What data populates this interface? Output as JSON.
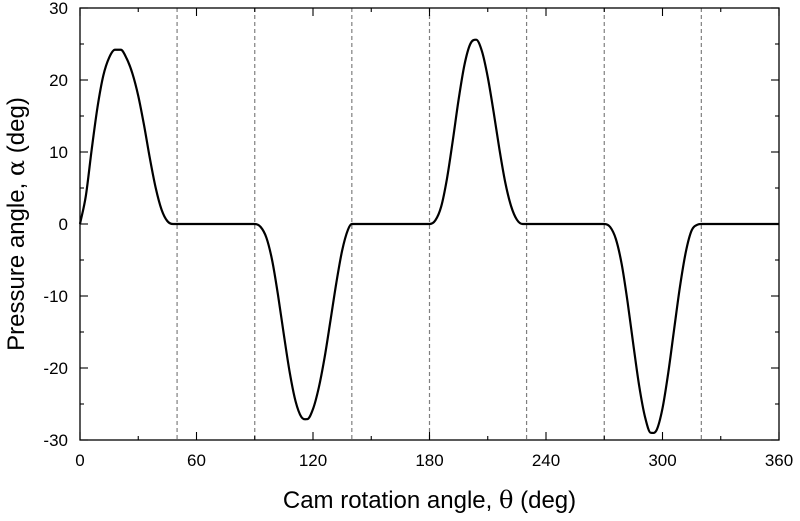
{
  "chart_data": {
    "type": "line",
    "title": "",
    "xlabel": {
      "prefix": "Cam rotation angle, ",
      "symbol": "θ",
      "suffix": " (deg)"
    },
    "ylabel": {
      "prefix": "Pressure angle, ",
      "symbol": "α",
      "suffix": " (deg)"
    },
    "xlim": [
      0,
      360
    ],
    "ylim": [
      -30,
      30
    ],
    "xticks": [
      0,
      60,
      120,
      180,
      240,
      300,
      360
    ],
    "yticks": [
      -30,
      -20,
      -10,
      0,
      10,
      20,
      30
    ],
    "grid": false,
    "line_color": "#000000",
    "divider_color": "#7f7f7f",
    "dividers": [
      50,
      90,
      140,
      180,
      230,
      270,
      320
    ],
    "series": [
      {
        "x": [
          0,
          3,
          6,
          9,
          12,
          15,
          18,
          21,
          24,
          27,
          30,
          33,
          36,
          39,
          42,
          45,
          48,
          50,
          90,
          93,
          96,
          99,
          102,
          105,
          108,
          111,
          114,
          117,
          120,
          123,
          126,
          129,
          132,
          135,
          138,
          140,
          180,
          183,
          186,
          189,
          192,
          195,
          198,
          201,
          204,
          207,
          210,
          213,
          216,
          219,
          222,
          225,
          228,
          230,
          270,
          273,
          276,
          279,
          282,
          285,
          288,
          291,
          294,
          297,
          300,
          303,
          306,
          309,
          312,
          315,
          318,
          320,
          360
        ],
        "y": [
          0,
          3.9,
          10.3,
          16.2,
          20.6,
          23.1,
          24.2,
          24.2,
          23.0,
          20.9,
          17.8,
          13.7,
          9.1,
          5.0,
          2.0,
          0.4,
          0.0,
          0,
          0,
          -0.4,
          -1.9,
          -5.1,
          -9.9,
          -15.4,
          -20.6,
          -24.6,
          -26.8,
          -27.1,
          -25.7,
          -22.7,
          -18.5,
          -13.4,
          -8.2,
          -3.7,
          -0.8,
          0,
          0,
          0.5,
          2.4,
          6.3,
          11.6,
          17.3,
          22.1,
          25.0,
          25.6,
          24.0,
          20.4,
          15.6,
          10.4,
          5.8,
          2.5,
          0.6,
          0.0,
          0,
          0,
          -0.4,
          -2.1,
          -5.6,
          -10.8,
          -16.8,
          -22.5,
          -26.8,
          -29.0,
          -28.6,
          -25.6,
          -20.6,
          -14.6,
          -8.7,
          -3.9,
          -0.9,
          -0.1,
          0,
          0
        ]
      }
    ]
  }
}
